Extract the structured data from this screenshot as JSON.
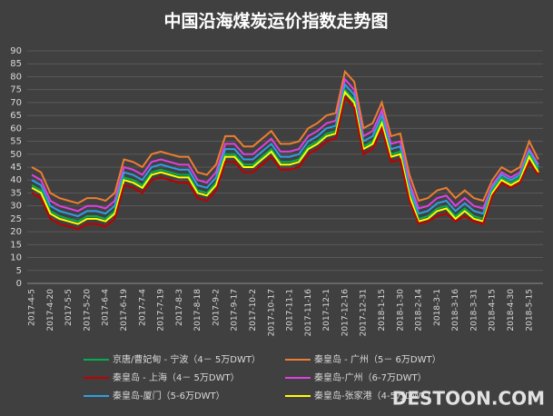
{
  "chart_data": {
    "type": "line",
    "title": "中国沿海煤炭运价指数走势图",
    "categories": [
      "2017-4-5",
      null,
      "2017-4-20",
      null,
      "2017-5-5",
      null,
      "2017-5-20",
      null,
      "2017-6-4",
      null,
      "2017-6-19",
      null,
      "2017-7-4",
      null,
      "2017-7-19",
      null,
      "2017-8-3",
      null,
      "2017-8-18",
      null,
      "2017-9-2",
      null,
      "2017-9-17",
      null,
      "2017-10-2",
      null,
      "2017-10-17",
      null,
      "2017-11-1",
      null,
      "2017-11-16",
      null,
      "2017-12-1",
      null,
      "2017-12-16",
      null,
      "2017-12-31",
      null,
      "2018-1-15",
      null,
      "2018-1-30",
      null,
      "2018-2-14",
      null,
      "2018-3-1",
      null,
      "2018-3-16",
      null,
      "2018-3-31",
      null,
      "2018-4-15",
      null,
      "2018-4-30",
      null,
      "2018-5-15",
      null
    ],
    "series": [
      {
        "name": "京唐/曹妃甸 - 宁波（4－ 5万DWT）",
        "color": "#00b050",
        "values": [
          38,
          36,
          28,
          26,
          25,
          24,
          26,
          26,
          25,
          28,
          41,
          40,
          38,
          43,
          44,
          43,
          42,
          42,
          36,
          35,
          39,
          50,
          50,
          46,
          46,
          49,
          52,
          47,
          47,
          48,
          53,
          55,
          58,
          59,
          75,
          71,
          53,
          55,
          63,
          50,
          51,
          35,
          25,
          26,
          29,
          30,
          26,
          29,
          26,
          25,
          36,
          41,
          39,
          41,
          50,
          44
        ]
      },
      {
        "name": "秦皇岛 - 广州（5－ 6万DWT）",
        "color": "#ed7d31",
        "values": [
          45,
          43,
          35,
          33,
          32,
          31,
          33,
          33,
          32,
          35,
          48,
          47,
          45,
          50,
          51,
          50,
          49,
          49,
          43,
          42,
          46,
          57,
          57,
          53,
          53,
          56,
          59,
          54,
          54,
          55,
          60,
          62,
          65,
          66,
          82,
          78,
          60,
          62,
          70,
          57,
          58,
          42,
          32,
          33,
          36,
          37,
          33,
          36,
          33,
          32,
          40,
          45,
          43,
          45,
          55,
          48
        ]
      },
      {
        "name": "秦皇岛 - 上海（4－ 5万DWT）",
        "color": "#c00000",
        "values": [
          35,
          33,
          25,
          23,
          22,
          21,
          23,
          23,
          22,
          25,
          38,
          37,
          35,
          40,
          41,
          40,
          39,
          39,
          33,
          32,
          36,
          47,
          47,
          43,
          43,
          46,
          49,
          44,
          44,
          45,
          50,
          52,
          55,
          56,
          72,
          68,
          50,
          52,
          60,
          47,
          48,
          32,
          23,
          24,
          26,
          27,
          24,
          26,
          24,
          23,
          34,
          39,
          37,
          39,
          47,
          42
        ]
      },
      {
        "name": "秦皇岛-广州（6-7万DWT）",
        "color": "#e040e0",
        "values": [
          42,
          40,
          32,
          30,
          29,
          28,
          30,
          30,
          29,
          32,
          45,
          44,
          42,
          47,
          48,
          47,
          46,
          46,
          40,
          39,
          43,
          54,
          54,
          50,
          50,
          53,
          56,
          51,
          51,
          52,
          57,
          59,
          62,
          63,
          79,
          75,
          57,
          59,
          67,
          54,
          55,
          39,
          29,
          30,
          33,
          34,
          30,
          33,
          30,
          29,
          38,
          43,
          41,
          43,
          52,
          46
        ]
      },
      {
        "name": "秦皇岛-厦门（5-6万DWT）",
        "color": "#2e9fe6",
        "values": [
          40,
          38,
          30,
          28,
          27,
          26,
          28,
          28,
          27,
          30,
          43,
          42,
          40,
          45,
          46,
          45,
          44,
          44,
          38,
          37,
          41,
          52,
          52,
          48,
          48,
          51,
          54,
          49,
          49,
          50,
          55,
          57,
          60,
          61,
          77,
          73,
          55,
          57,
          65,
          52,
          53,
          37,
          27,
          28,
          31,
          32,
          28,
          31,
          28,
          27,
          37,
          42,
          40,
          42,
          51,
          45
        ]
      },
      {
        "name": "秦皇岛-张家港（4-5万DWT）",
        "color": "#ffff00",
        "values": [
          37,
          35,
          27,
          25,
          24,
          23,
          25,
          25,
          24,
          27,
          40,
          39,
          37,
          42,
          43,
          42,
          41,
          41,
          35,
          34,
          38,
          49,
          49,
          45,
          45,
          48,
          51,
          46,
          46,
          47,
          52,
          54,
          57,
          58,
          74,
          70,
          52,
          54,
          62,
          49,
          50,
          34,
          24,
          25,
          28,
          29,
          25,
          28,
          25,
          24,
          35,
          40,
          38,
          40,
          49,
          43
        ]
      }
    ],
    "ylim": [
      0,
      90
    ],
    "yticks": [
      0,
      5,
      10,
      15,
      20,
      25,
      30,
      35,
      40,
      45,
      50,
      55,
      60,
      65,
      70,
      75,
      80,
      85,
      90
    ],
    "grid": true,
    "watermark": "DESTOON.COM"
  }
}
